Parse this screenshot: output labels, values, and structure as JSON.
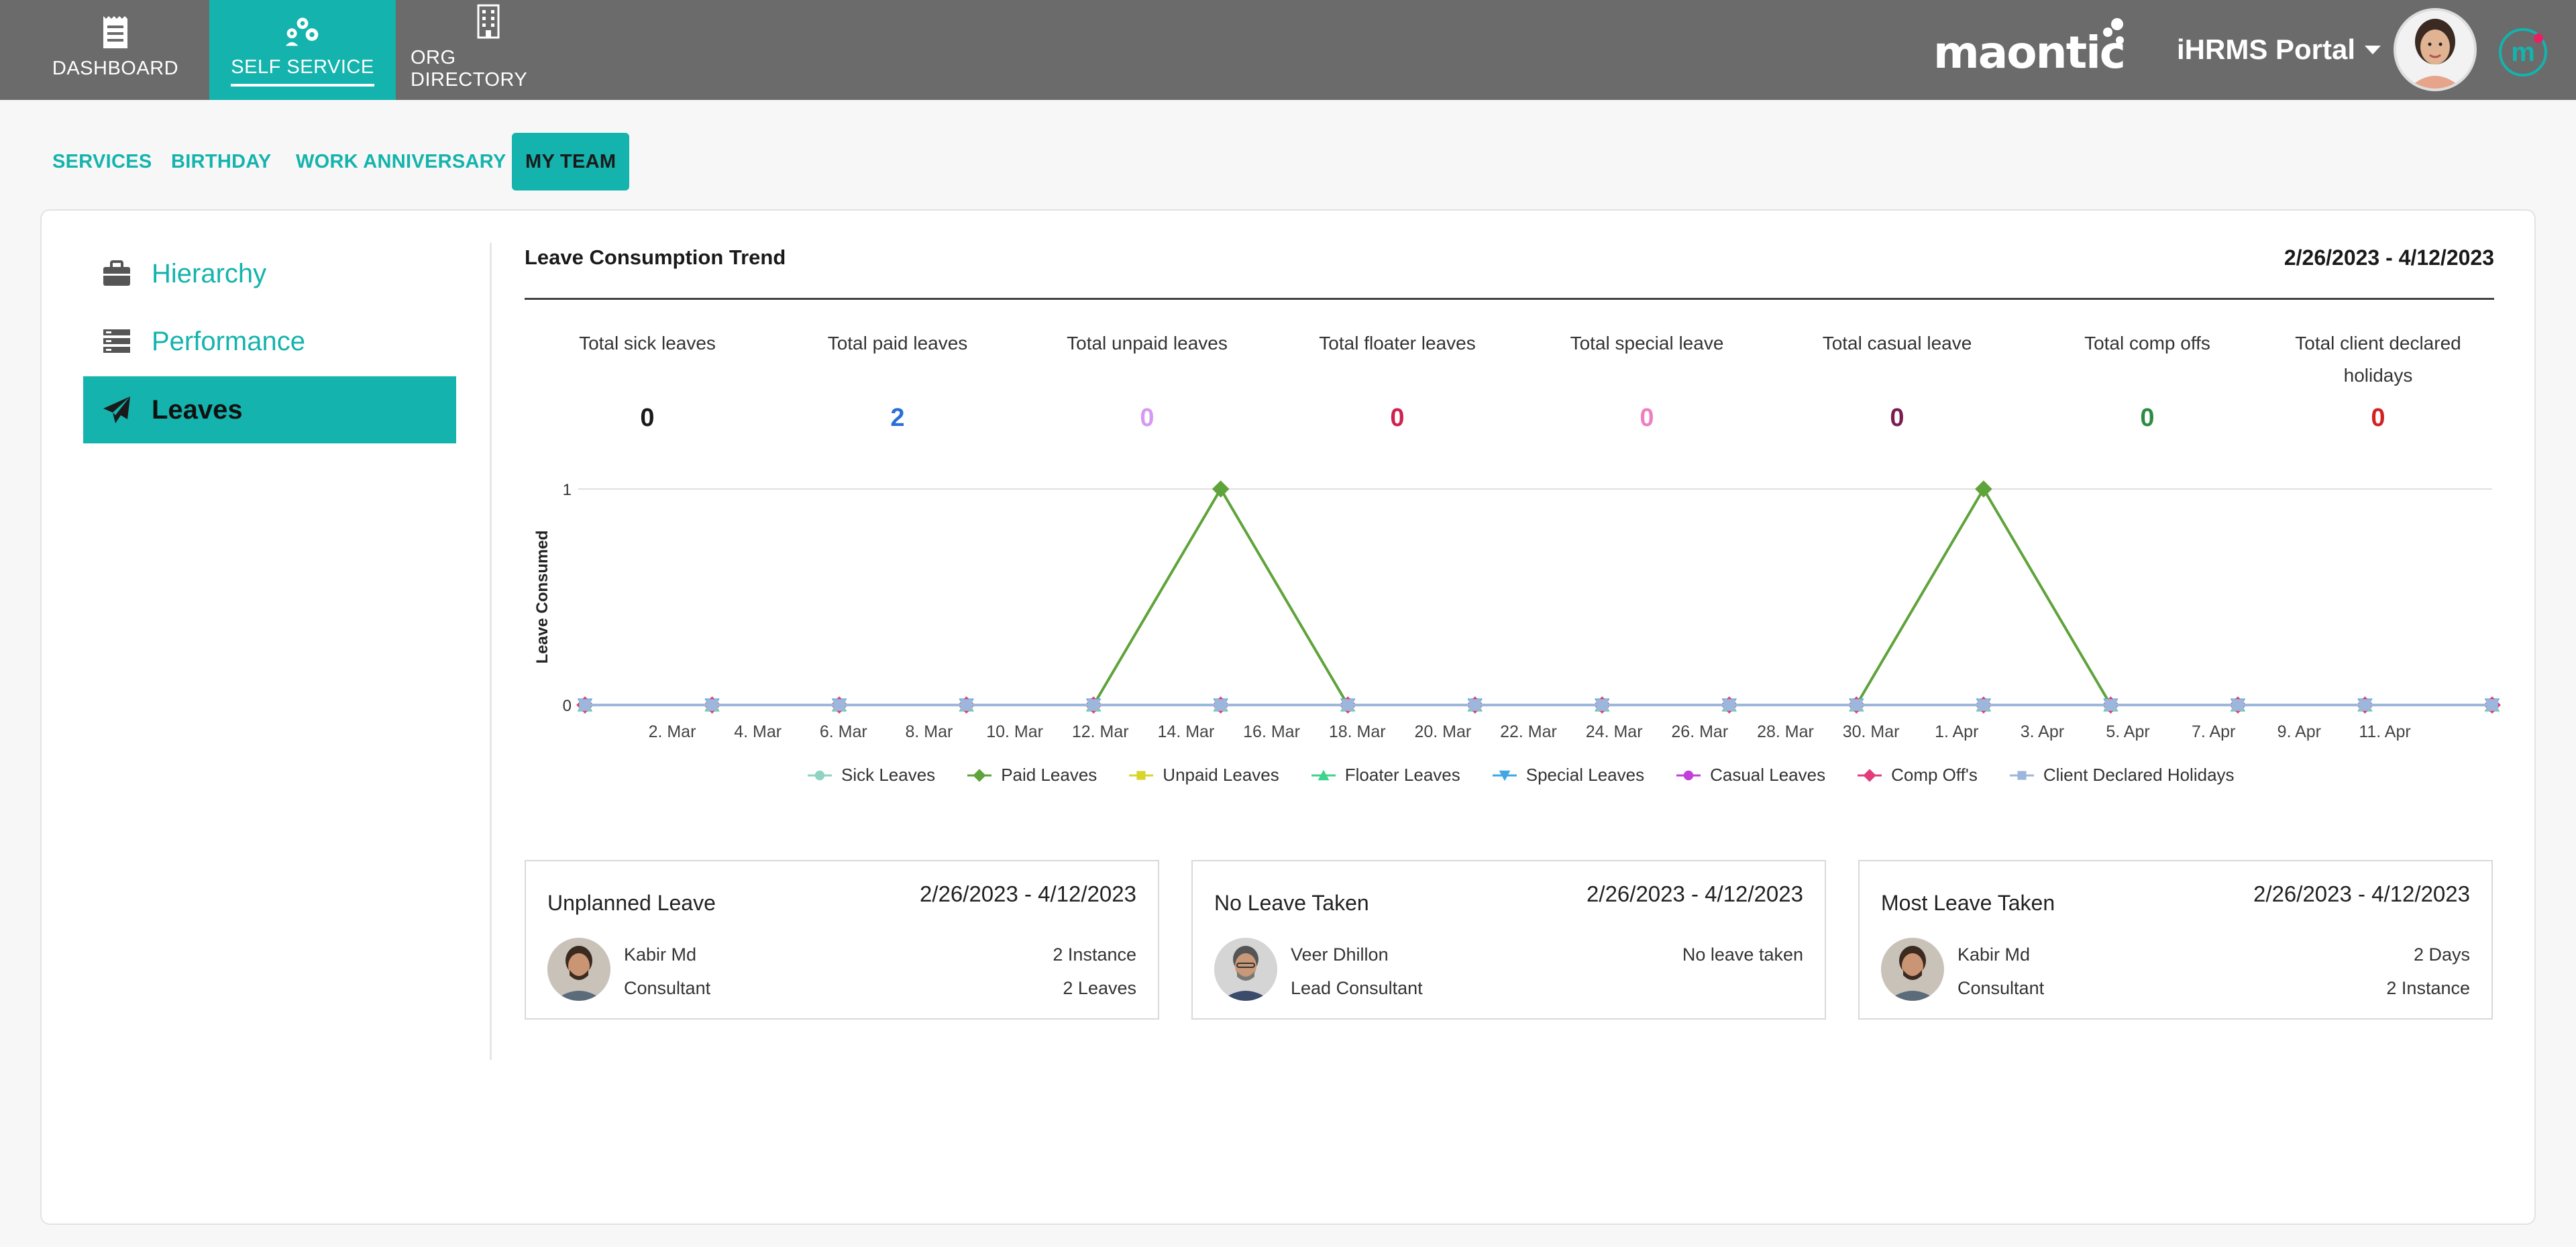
{
  "nav": {
    "tabs": [
      {
        "label": "DASHBOARD",
        "icon": "receipt-icon"
      },
      {
        "label": "SELF SERVICE",
        "icon": "gears-icon",
        "active": true
      },
      {
        "label": "ORG DIRECTORY",
        "icon": "building-icon"
      }
    ],
    "brand": "maontic",
    "portal_label": "iHRMS Portal",
    "app_logo_letter": "m"
  },
  "subtabs": [
    {
      "label": "SERVICES"
    },
    {
      "label": "BIRTHDAY"
    },
    {
      "label": "WORK ANNIVERSARY"
    },
    {
      "label": "MY TEAM",
      "active": true
    }
  ],
  "sidebar": {
    "items": [
      {
        "label": "Hierarchy",
        "icon": "briefcase-icon"
      },
      {
        "label": "Performance",
        "icon": "list-icon"
      },
      {
        "label": "Leaves",
        "icon": "paper-plane-icon",
        "active": true
      }
    ]
  },
  "trend": {
    "title": "Leave Consumption Trend",
    "date_range": "2/26/2023 - 4/12/2023"
  },
  "totals": [
    {
      "label": "Total sick leaves",
      "value": "0",
      "color": "#1a1a1a"
    },
    {
      "label": "Total paid leaves",
      "value": "2",
      "color": "#2a6fd6"
    },
    {
      "label": "Total unpaid leaves",
      "value": "0",
      "color": "#d59af0"
    },
    {
      "label": "Total floater leaves",
      "value": "0",
      "color": "#d0214f"
    },
    {
      "label": "Total special leave",
      "value": "0",
      "color": "#ef7fc1"
    },
    {
      "label": "Total casual leave",
      "value": "0",
      "color": "#7a1e52"
    },
    {
      "label": "Total comp offs",
      "value": "0",
      "color": "#2e8b43"
    },
    {
      "label": "Total client declared holidays",
      "value": "0",
      "color": "#d32222"
    }
  ],
  "chart_data": {
    "type": "line",
    "ylabel": "Leave Consumed",
    "xlabel": "",
    "ylim": [
      0,
      1
    ],
    "yticks": [
      "0",
      "1"
    ],
    "x_tick_labels": [
      "2. Mar",
      "4. Mar",
      "6. Mar",
      "8. Mar",
      "10. Mar",
      "12. Mar",
      "14. Mar",
      "16. Mar",
      "18. Mar",
      "20. Mar",
      "22. Mar",
      "24. Mar",
      "26. Mar",
      "28. Mar",
      "30. Mar",
      "1. Apr",
      "3. Apr",
      "5. Apr",
      "7. Apr",
      "9. Apr",
      "11. Apr"
    ],
    "x": [
      "27. Feb",
      "2. Mar",
      "5. Mar",
      "8. Mar",
      "11. Mar",
      "14. Mar",
      "17. Mar",
      "20. Mar",
      "23. Mar",
      "26. Mar",
      "29. Mar",
      "1. Apr",
      "4. Apr",
      "7. Apr",
      "10. Apr",
      "13. Apr"
    ],
    "series": [
      {
        "name": "Sick Leaves",
        "color": "#8fd3c0",
        "marker": "circle",
        "values": [
          0,
          0,
          0,
          0,
          0,
          0,
          0,
          0,
          0,
          0,
          0,
          0,
          0,
          0,
          0,
          0
        ]
      },
      {
        "name": "Paid Leaves",
        "color": "#5fa33b",
        "marker": "diamond",
        "values": [
          0,
          0,
          0,
          0,
          0,
          1,
          0,
          0,
          0,
          0,
          0,
          1,
          0,
          0,
          0,
          0
        ]
      },
      {
        "name": "Unpaid Leaves",
        "color": "#d9d42b",
        "marker": "square",
        "values": [
          0,
          0,
          0,
          0,
          0,
          0,
          0,
          0,
          0,
          0,
          0,
          0,
          0,
          0,
          0,
          0
        ]
      },
      {
        "name": "Floater Leaves",
        "color": "#3ed38a",
        "marker": "triangle",
        "values": [
          0,
          0,
          0,
          0,
          0,
          0,
          0,
          0,
          0,
          0,
          0,
          0,
          0,
          0,
          0,
          0
        ]
      },
      {
        "name": "Special Leaves",
        "color": "#3fa7e3",
        "marker": "triangle-down",
        "values": [
          0,
          0,
          0,
          0,
          0,
          0,
          0,
          0,
          0,
          0,
          0,
          0,
          0,
          0,
          0,
          0
        ]
      },
      {
        "name": "Casual Leaves",
        "color": "#c23fd9",
        "marker": "circle",
        "values": [
          0,
          0,
          0,
          0,
          0,
          0,
          0,
          0,
          0,
          0,
          0,
          0,
          0,
          0,
          0,
          0
        ]
      },
      {
        "name": "Comp Off's",
        "color": "#e23c7b",
        "marker": "diamond",
        "values": [
          0,
          0,
          0,
          0,
          0,
          0,
          0,
          0,
          0,
          0,
          0,
          0,
          0,
          0,
          0,
          0
        ]
      },
      {
        "name": "Client Declared Holidays",
        "color": "#9cb7db",
        "marker": "square",
        "values": [
          0,
          0,
          0,
          0,
          0,
          0,
          0,
          0,
          0,
          0,
          0,
          0,
          0,
          0,
          0,
          0
        ]
      }
    ],
    "grid": true,
    "legend_position": "bottom"
  },
  "stat_cards": [
    {
      "title": "Unplanned Leave",
      "date_range": "2/26/2023 - 4/12/2023",
      "name": "Kabir Md",
      "role": "Consultant",
      "value1": "2 Instance",
      "value2": "2 Leaves"
    },
    {
      "title": "No Leave Taken",
      "date_range": "2/26/2023 - 4/12/2023",
      "name": "Veer Dhillon",
      "role": "Lead Consultant",
      "value1": "No leave taken",
      "value2": ""
    },
    {
      "title": "Most Leave Taken",
      "date_range": "2/26/2023 - 4/12/2023",
      "name": "Kabir Md",
      "role": "Consultant",
      "value1": "2 Days",
      "value2": "2 Instance"
    }
  ]
}
